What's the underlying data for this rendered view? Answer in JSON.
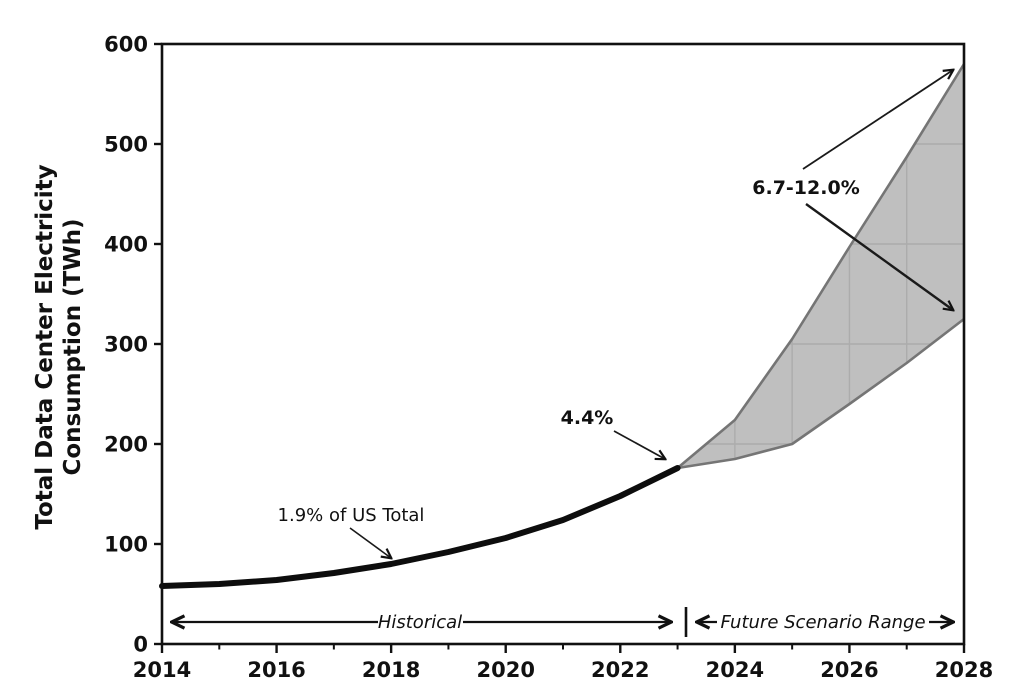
{
  "figure": {
    "background": "#ffffff"
  },
  "colors": {
    "line": "#0d0d0d",
    "band_fill": "#bfbfbf",
    "band_edge": "#757575",
    "band_grid": "#acacac",
    "axis": "#111111",
    "text": "#111111"
  },
  "axes": {
    "ylabel_line1": "Total Data Center Electricity",
    "ylabel_line2": "Consumption (TWh)",
    "x_major_ticks": [
      2014,
      2016,
      2018,
      2020,
      2022,
      2024,
      2026,
      2028
    ],
    "x_minor_ticks": [
      2015,
      2017,
      2019,
      2021,
      2023,
      2025,
      2027
    ],
    "y_ticks": [
      0,
      100,
      200,
      300,
      400,
      500,
      600
    ]
  },
  "annotations": {
    "share_2018": "1.9% of US Total",
    "share_2023": "4.4%",
    "share_2028": "6.7-12.0%",
    "historical_label": "Historical",
    "future_label": "Future Scenario Range"
  },
  "chart_data": {
    "type": "line",
    "title": "",
    "xlabel": "",
    "ylabel": "Total Data Center Electricity Consumption (TWh)",
    "xlim": [
      2014,
      2028
    ],
    "ylim": [
      0,
      600
    ],
    "grid": false,
    "legend": "none",
    "series": [
      {
        "name": "Historical",
        "style": "thick black line",
        "x": [
          2014,
          2015,
          2016,
          2017,
          2018,
          2019,
          2020,
          2021,
          2022,
          2023
        ],
        "values": [
          58,
          60,
          64,
          71,
          80,
          92,
          106,
          124,
          148,
          176
        ]
      },
      {
        "name": "Future scenario low",
        "style": "gray band lower edge",
        "x": [
          2023,
          2024,
          2025,
          2026,
          2027,
          2028
        ],
        "values": [
          176,
          185,
          200,
          240,
          281,
          325
        ]
      },
      {
        "name": "Future scenario high",
        "style": "gray band upper edge",
        "x": [
          2023,
          2024,
          2025,
          2026,
          2027,
          2028
        ],
        "values": [
          176,
          224,
          305,
          397,
          487,
          580
        ]
      }
    ],
    "band": {
      "label": "Future Scenario Range",
      "x": [
        2023,
        2024,
        2025,
        2026,
        2027,
        2028
      ],
      "low": [
        176,
        185,
        200,
        240,
        281,
        325
      ],
      "high": [
        176,
        224,
        305,
        397,
        487,
        580
      ]
    },
    "point_annotations": [
      {
        "text": "1.9% of US Total",
        "points_to": {
          "x": 2018,
          "y": 80
        }
      },
      {
        "text": "4.4%",
        "points_to": {
          "x": 2023,
          "y": 176
        }
      },
      {
        "text": "6.7-12.0%",
        "points_to_range": {
          "x": 2028,
          "low": 325,
          "high": 580
        }
      }
    ],
    "span_annotations": [
      {
        "text": "Historical",
        "from": 2014,
        "to": 2023
      },
      {
        "text": "Future Scenario Range",
        "from": 2023,
        "to": 2028
      }
    ]
  }
}
